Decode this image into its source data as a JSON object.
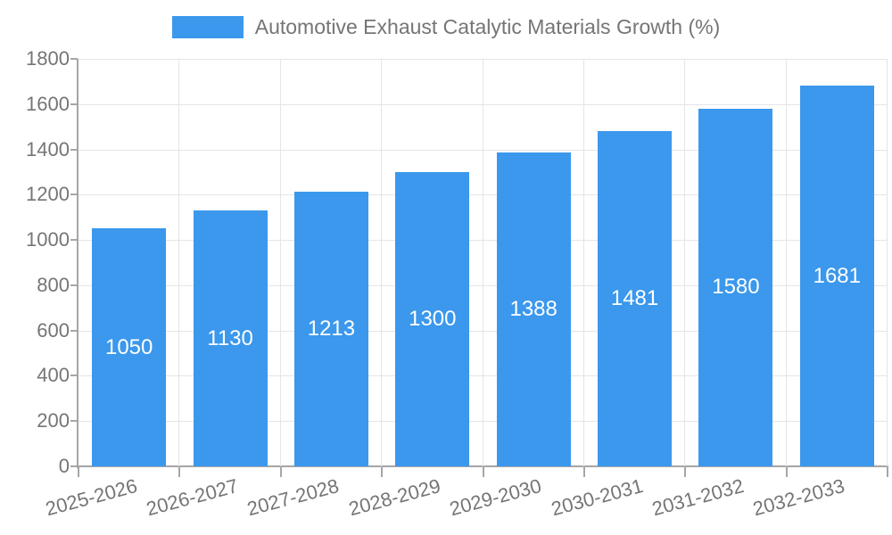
{
  "chart_data": {
    "type": "bar",
    "title": "Automotive Exhaust Catalytic Materials Growth (%)",
    "categories": [
      "2025-2026",
      "2026-2027",
      "2027-2028",
      "2028-2029",
      "2029-2030",
      "2030-2031",
      "2031-2032",
      "2032-2033"
    ],
    "values": [
      1050,
      1130,
      1213,
      1300,
      1388,
      1481,
      1580,
      1681
    ],
    "ylim": [
      0,
      1800
    ],
    "yticks": [
      0,
      200,
      400,
      600,
      800,
      1000,
      1200,
      1400,
      1600,
      1800
    ],
    "ytick_step": 200,
    "xlabel": "",
    "ylabel": "",
    "grid": true,
    "legend_position": "top-center",
    "x_label_rotation_deg": -15,
    "bar_color": "#3B98EC",
    "bar_label_color": "#ffffff",
    "axis_text_color": "#757575",
    "grid_color": "#e5e5e5",
    "axis_line_color": "#a6a6a6",
    "background_color": "#ffffff"
  }
}
